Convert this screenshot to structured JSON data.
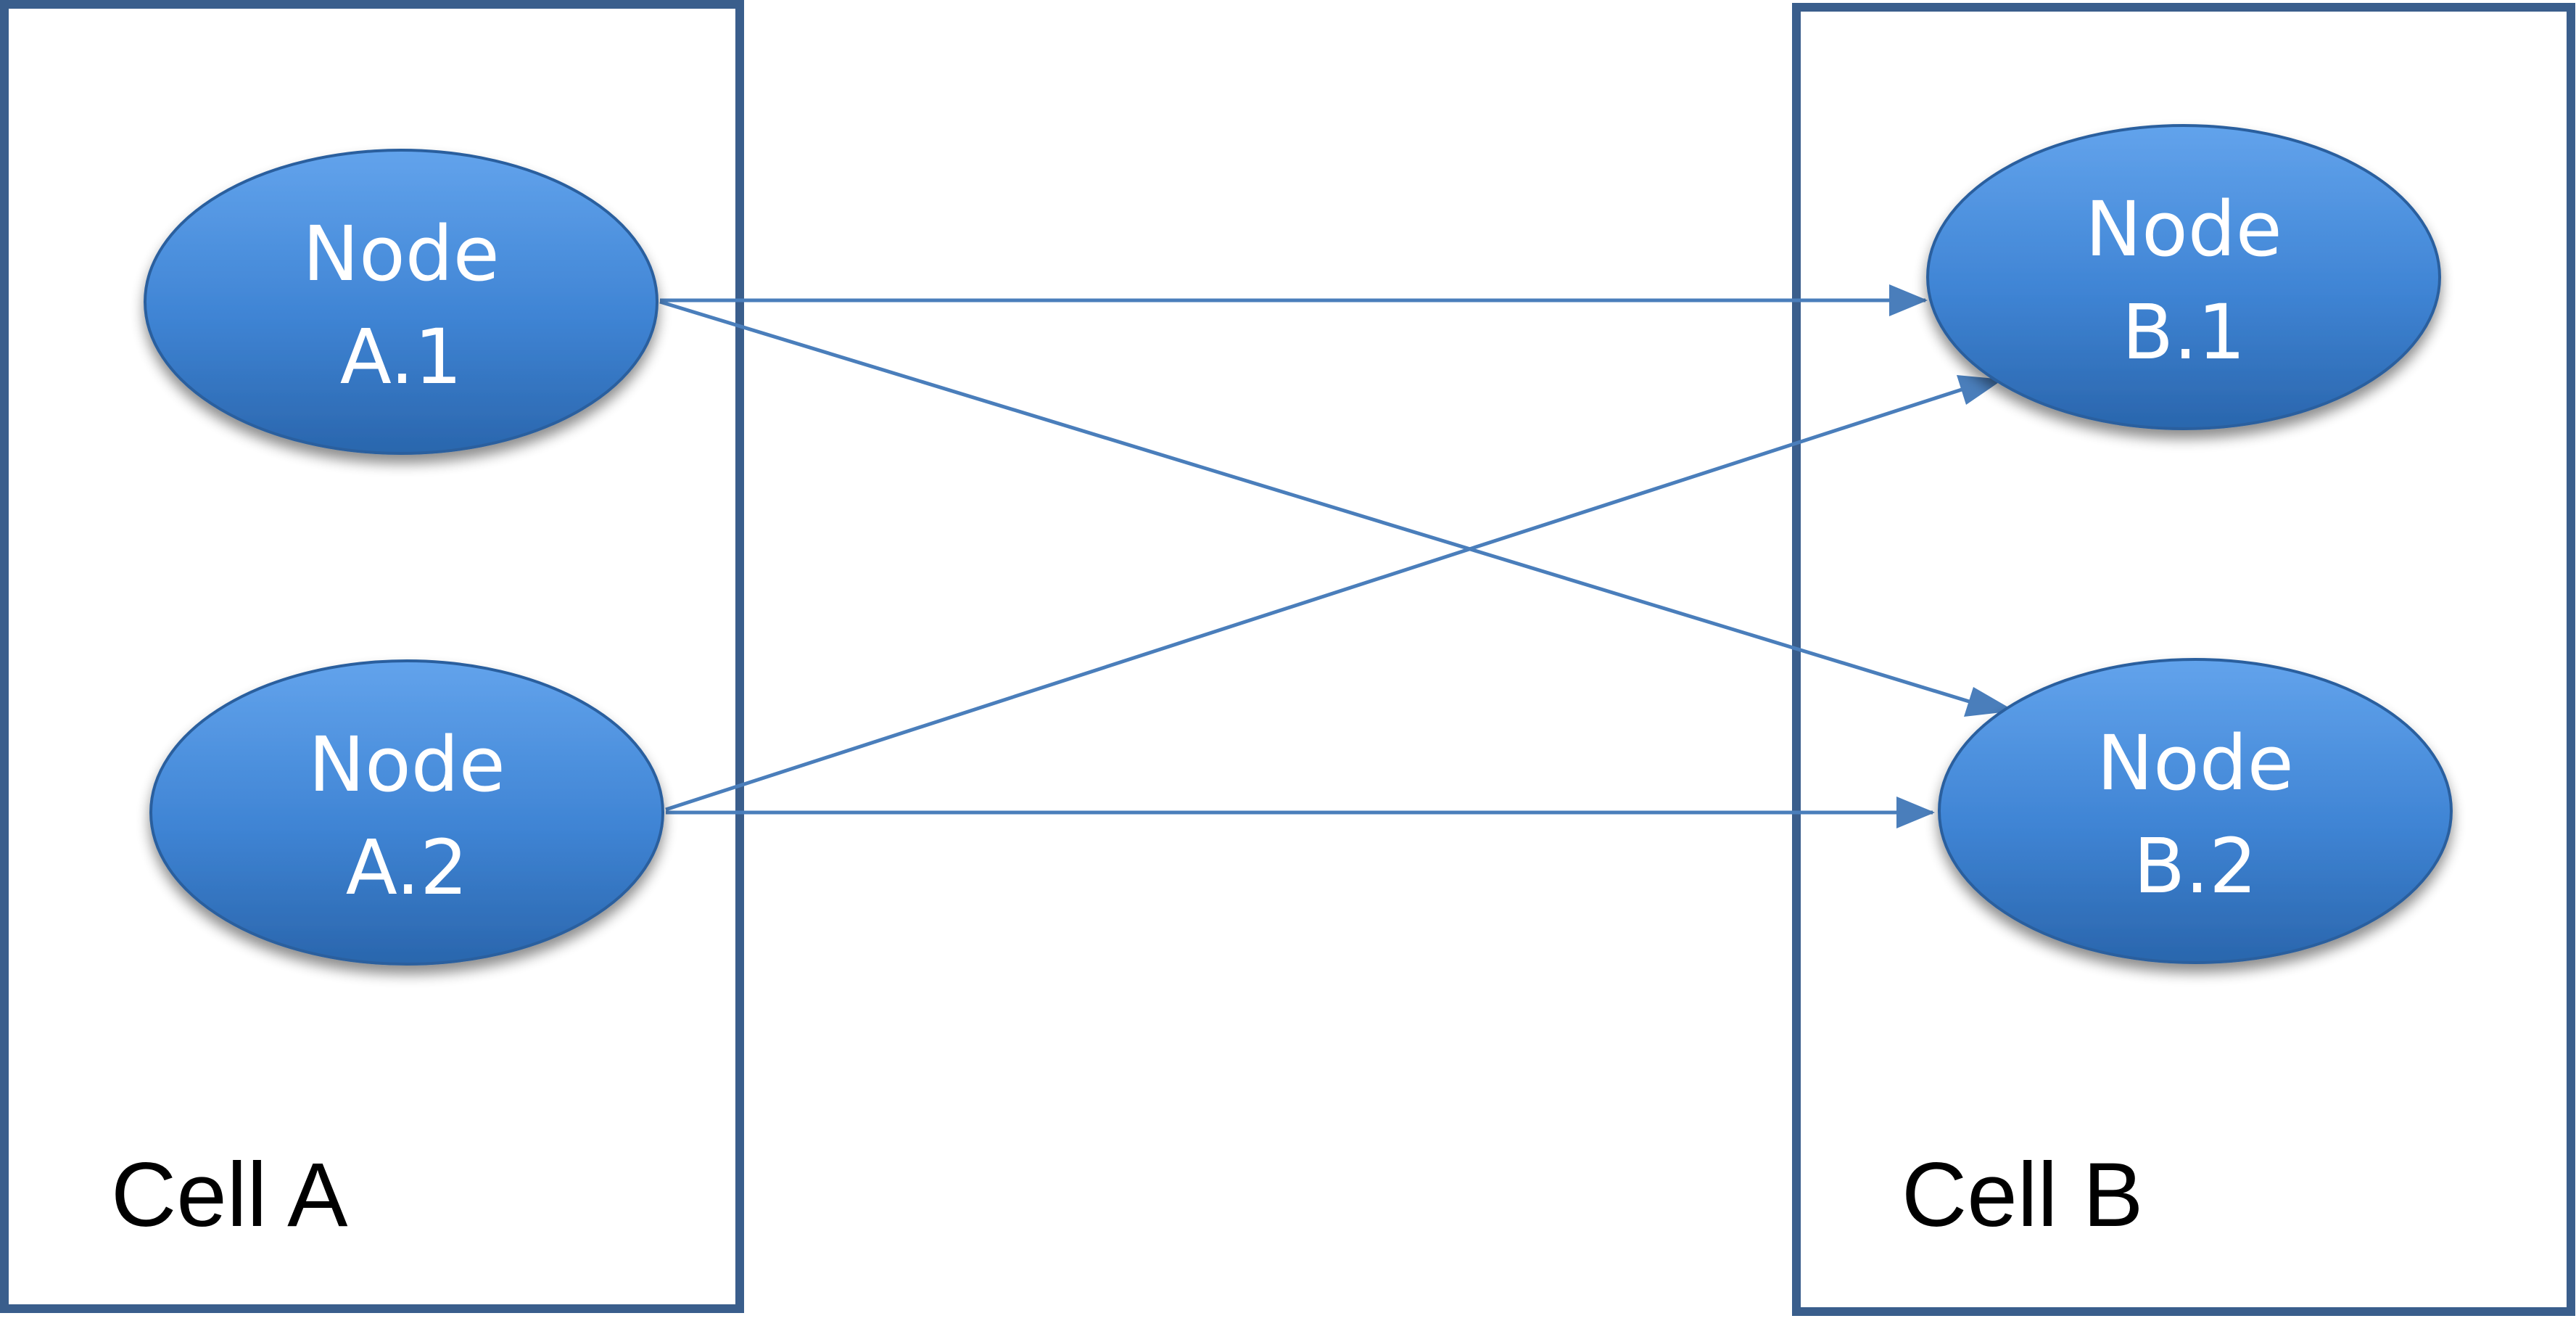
{
  "colors": {
    "cell_border": "#3a5e8c",
    "node_fill_top": "#5a9be6",
    "node_fill_bottom": "#2f6db5",
    "node_stroke": "#2a5f9e",
    "edge": "#4a7ebb",
    "node_text": "#ffffff",
    "cell_text": "#000000"
  },
  "cells": [
    {
      "id": "cell-a",
      "label": "Cell A"
    },
    {
      "id": "cell-b",
      "label": "Cell B"
    }
  ],
  "nodes": [
    {
      "id": "a1",
      "line1": "Node",
      "line2": "A.1",
      "cell": "cell-a"
    },
    {
      "id": "a2",
      "line1": "Node",
      "line2": "A.2",
      "cell": "cell-a"
    },
    {
      "id": "b1",
      "line1": "Node",
      "line2": "B.1",
      "cell": "cell-b"
    },
    {
      "id": "b2",
      "line1": "Node",
      "line2": "B.2",
      "cell": "cell-b"
    }
  ],
  "edges": [
    {
      "from": "a1",
      "to": "b1"
    },
    {
      "from": "a1",
      "to": "b2"
    },
    {
      "from": "a2",
      "to": "b1"
    },
    {
      "from": "a2",
      "to": "b2"
    }
  ]
}
